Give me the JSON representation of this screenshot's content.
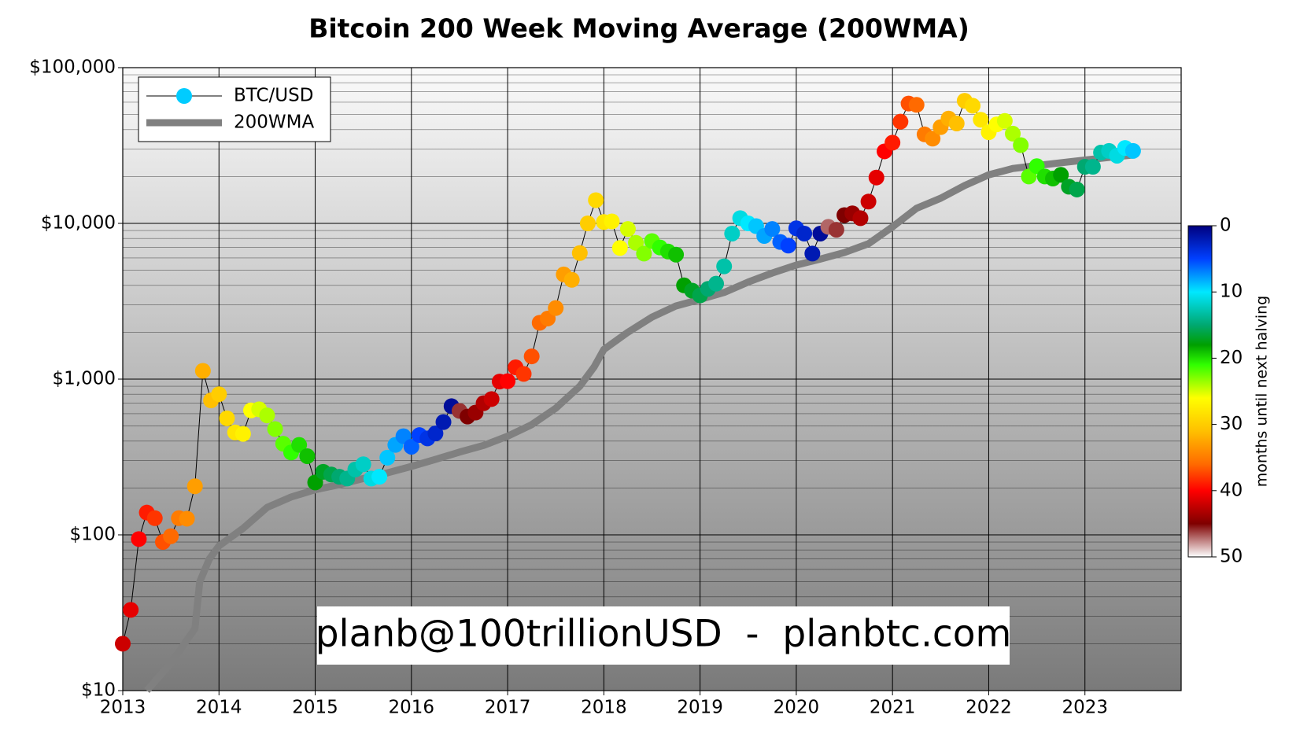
{
  "chart_data": {
    "type": "scatter",
    "title": "Bitcoin 200 Week Moving Average (200WMA)",
    "watermark": "planb@100trillionUSD  -  planbtc.com",
    "log_y": true,
    "grid": true,
    "legend": "upper left",
    "xlim": [
      2013,
      2024
    ],
    "xticks": [
      2013,
      2014,
      2015,
      2016,
      2017,
      2018,
      2019,
      2020,
      2021,
      2022,
      2023
    ],
    "ylim": [
      10,
      100000
    ],
    "yticks": [
      {
        "value": 10,
        "label": "$10"
      },
      {
        "value": 100,
        "label": "$100"
      },
      {
        "value": 1000,
        "label": "$1,000"
      },
      {
        "value": 10000,
        "label": "$10,000"
      },
      {
        "value": 100000,
        "label": "$100,000"
      }
    ],
    "yminorticks": [
      20,
      30,
      40,
      50,
      60,
      70,
      80,
      90,
      200,
      300,
      400,
      500,
      600,
      700,
      800,
      900,
      2000,
      3000,
      4000,
      5000,
      6000,
      7000,
      8000,
      9000,
      20000,
      30000,
      40000,
      50000,
      60000,
      70000,
      80000,
      90000
    ],
    "background": [
      "#fafafa",
      "#7a7a7a"
    ],
    "colorbar": {
      "label": "months until next halving",
      "lim": [
        0,
        50
      ],
      "ticks": [
        0,
        10,
        20,
        30,
        40,
        50
      ],
      "colormap": [
        [
          0,
          "#00007f"
        ],
        [
          5,
          "#0040ff"
        ],
        [
          10,
          "#00e8ff"
        ],
        [
          15,
          "#00a870"
        ],
        [
          18,
          "#00a000"
        ],
        [
          21,
          "#30ff00"
        ],
        [
          26,
          "#ffff00"
        ],
        [
          31,
          "#ffc000"
        ],
        [
          36,
          "#ff6a00"
        ],
        [
          40,
          "#ff0000"
        ],
        [
          45,
          "#7f0000"
        ],
        [
          50,
          "#ffffff"
        ]
      ]
    },
    "series": [
      {
        "name": "BTC/USD",
        "color": "#000000",
        "legend_color": "#00ccff",
        "x": [
          2013,
          2013.083,
          2013.167,
          2013.25,
          2013.333,
          2013.417,
          2013.5,
          2013.583,
          2013.667,
          2013.75,
          2013.833,
          2013.917,
          2014,
          2014.083,
          2014.167,
          2014.25,
          2014.333,
          2014.417,
          2014.5,
          2014.583,
          2014.667,
          2014.75,
          2014.833,
          2014.917,
          2015,
          2015.083,
          2015.167,
          2015.25,
          2015.333,
          2015.417,
          2015.5,
          2015.583,
          2015.667,
          2015.75,
          2015.833,
          2015.917,
          2016,
          2016.083,
          2016.167,
          2016.25,
          2016.333,
          2016.417,
          2016.5,
          2016.583,
          2016.667,
          2016.75,
          2016.833,
          2016.917,
          2017,
          2017.083,
          2017.167,
          2017.25,
          2017.333,
          2017.417,
          2017.5,
          2017.583,
          2017.667,
          2017.75,
          2017.833,
          2017.917,
          2018,
          2018.083,
          2018.167,
          2018.25,
          2018.333,
          2018.417,
          2018.5,
          2018.583,
          2018.667,
          2018.75,
          2018.833,
          2018.917,
          2019,
          2019.083,
          2019.167,
          2019.25,
          2019.333,
          2019.417,
          2019.5,
          2019.583,
          2019.667,
          2019.75,
          2019.833,
          2019.917,
          2020,
          2020.083,
          2020.167,
          2020.25,
          2020.333,
          2020.417,
          2020.5,
          2020.583,
          2020.667,
          2020.75,
          2020.833,
          2020.917,
          2021,
          2021.083,
          2021.167,
          2021.25,
          2021.333,
          2021.417,
          2021.5,
          2021.583,
          2021.667,
          2021.75,
          2021.833,
          2021.917,
          2022,
          2022.083,
          2022.167,
          2022.25,
          2022.333,
          2022.417,
          2022.5,
          2022.583,
          2022.667,
          2022.75,
          2022.833,
          2022.917,
          2023,
          2023.083,
          2023.167,
          2023.25,
          2023.333,
          2023.417,
          2023.5
        ],
        "values": [
          20,
          33,
          94,
          139,
          128,
          90,
          98,
          128,
          127,
          205,
          1130,
          730,
          800,
          560,
          455,
          445,
          630,
          640,
          585,
          478,
          385,
          338,
          378,
          320,
          217,
          254,
          244,
          236,
          230,
          263,
          284,
          230,
          236,
          313,
          378,
          430,
          368,
          437,
          416,
          448,
          530,
          670,
          625,
          575,
          610,
          700,
          745,
          965,
          970,
          1190,
          1080,
          1400,
          2300,
          2450,
          2860,
          4700,
          4340,
          6450,
          10000,
          14100,
          10200,
          10300,
          6950,
          9200,
          7500,
          6400,
          7700,
          7000,
          6600,
          6300,
          4000,
          3700,
          3450,
          3800,
          4100,
          5300,
          8600,
          10800,
          10000,
          9600,
          8300,
          9200,
          7600,
          7200,
          9300,
          8600,
          6400,
          8600,
          9500,
          9100,
          11300,
          11600,
          10800,
          13800,
          19700,
          29000,
          33000,
          45000,
          58800,
          57700,
          37300,
          35000,
          41500,
          47100,
          43800,
          61300,
          57000,
          46300,
          38500,
          43200,
          45500,
          37700,
          31800,
          20000,
          23300,
          20000,
          19400,
          20500,
          17200,
          16500,
          23100,
          23100,
          28500,
          29200,
          27200,
          30500,
          29200
        ],
        "color_values": [
          42,
          41,
          40,
          39,
          38,
          37,
          36,
          35,
          34,
          33,
          32,
          31,
          30,
          29,
          28,
          27,
          26,
          25,
          24,
          23,
          22,
          21,
          20,
          19,
          18,
          17,
          16,
          15,
          14,
          13,
          12,
          11,
          10,
          9,
          8,
          7,
          6,
          5,
          4,
          3,
          2,
          1,
          46,
          45,
          44,
          43,
          42,
          41,
          40,
          39,
          38,
          37,
          36,
          35,
          34,
          33,
          32,
          31,
          30,
          29,
          28,
          27,
          26,
          25,
          24,
          23,
          22,
          21,
          20,
          19,
          18,
          17,
          16,
          15,
          14,
          13,
          12,
          11,
          10,
          9,
          8,
          7,
          6,
          5,
          4,
          3,
          2,
          1,
          47,
          46,
          45,
          44,
          43,
          42,
          41,
          40,
          39,
          38,
          37,
          36,
          35,
          34,
          33,
          32,
          31,
          30,
          29,
          28,
          27,
          26,
          25,
          24,
          23,
          22,
          21,
          20,
          19,
          18,
          17,
          16,
          15,
          14,
          13,
          12,
          11,
          10,
          9
        ]
      },
      {
        "name": "200WMA",
        "color": "#808080",
        "x": [
          2013.25,
          2013.5,
          2013.75,
          2013.8,
          2013.9,
          2014,
          2014.25,
          2014.5,
          2014.75,
          2015,
          2015.25,
          2015.5,
          2015.75,
          2016,
          2016.25,
          2016.5,
          2016.75,
          2017,
          2017.25,
          2017.5,
          2017.75,
          2017.9,
          2018,
          2018.25,
          2018.5,
          2018.75,
          2019,
          2019.25,
          2019.5,
          2019.75,
          2020,
          2020.25,
          2020.5,
          2020.75,
          2021,
          2021.25,
          2021.5,
          2021.75,
          2022,
          2022.25,
          2022.5,
          2022.75,
          2023,
          2023.25,
          2023.5
        ],
        "values": [
          10,
          15,
          25,
          50,
          70,
          85,
          110,
          150,
          175,
          195,
          210,
          230,
          250,
          275,
          305,
          340,
          375,
          430,
          510,
          650,
          900,
          1200,
          1550,
          2000,
          2500,
          2950,
          3250,
          3600,
          4200,
          4800,
          5400,
          5900,
          6500,
          7400,
          9500,
          12500,
          14500,
          17500,
          20500,
          22500,
          23500,
          24500,
          25500,
          26500,
          27500
        ]
      }
    ]
  }
}
